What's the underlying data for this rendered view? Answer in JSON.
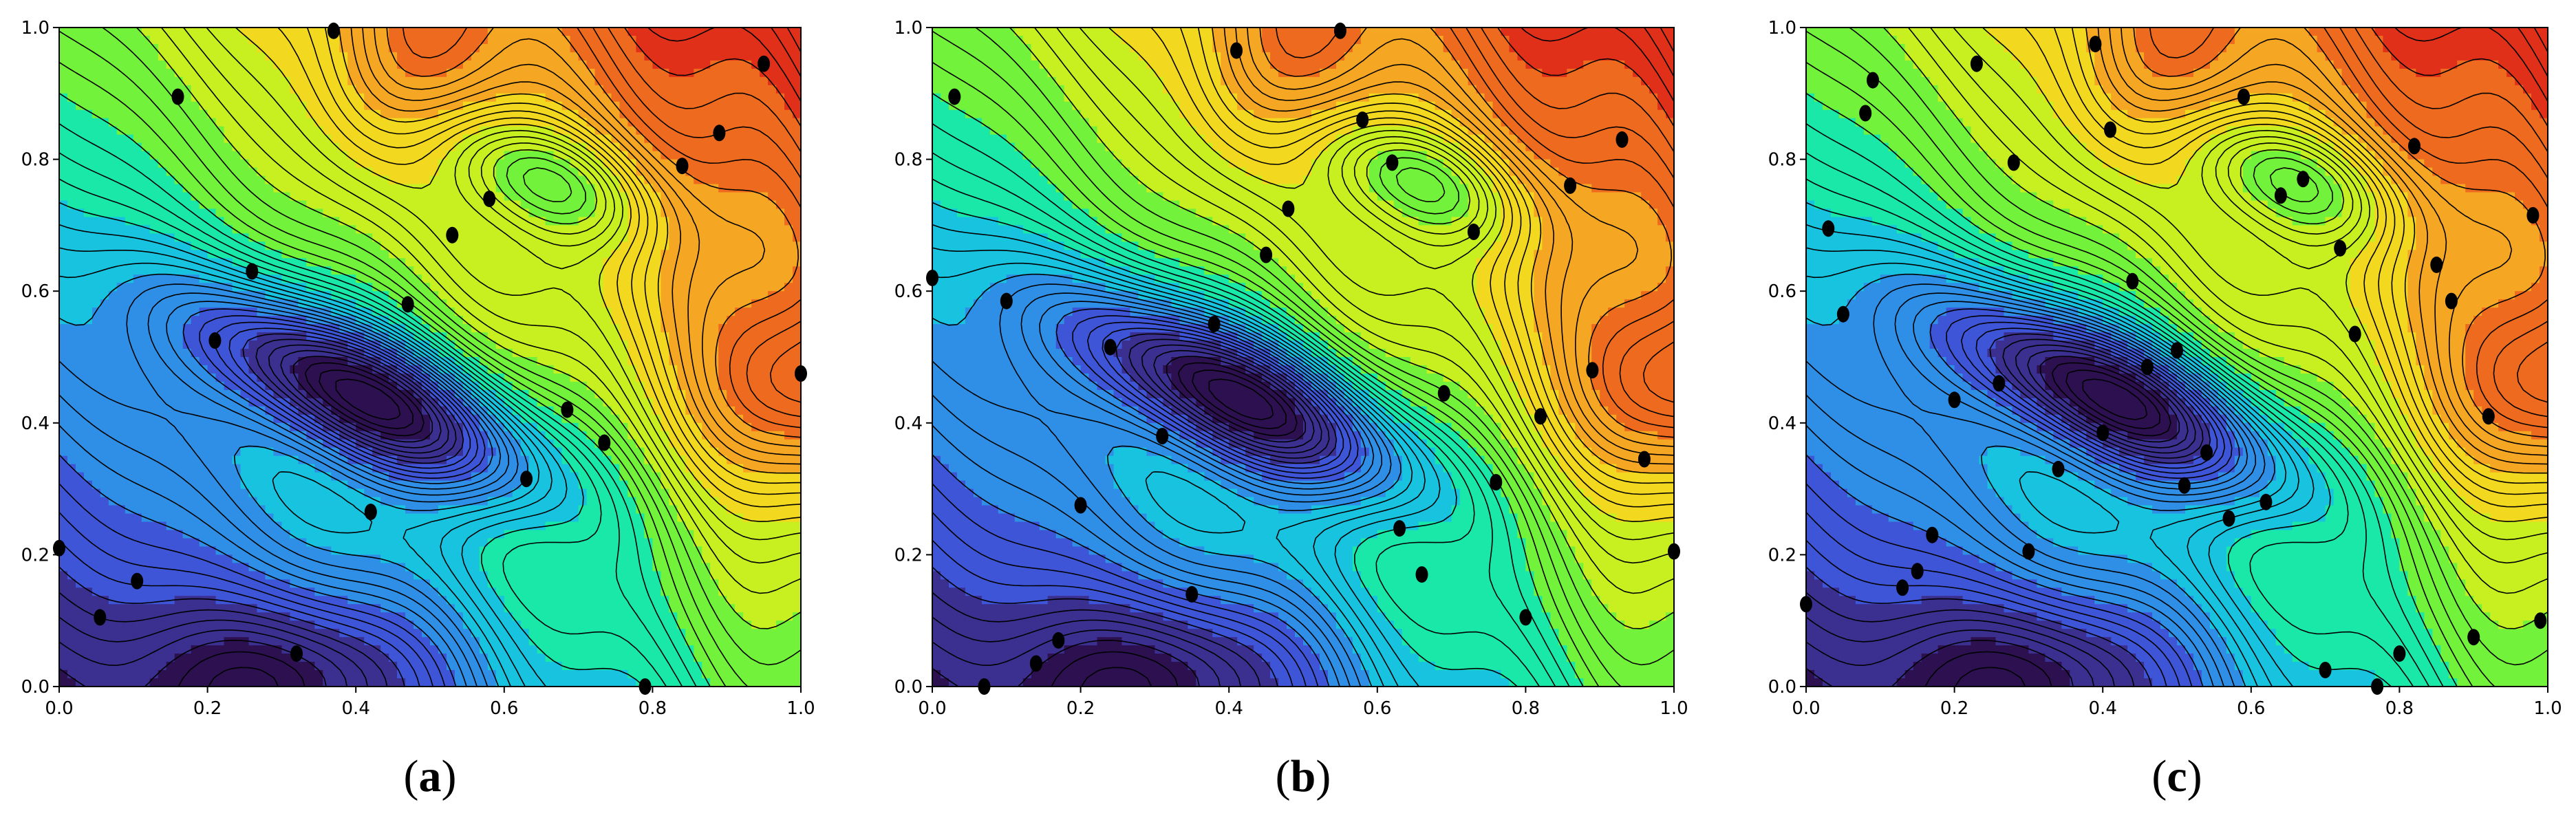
{
  "colors": {
    "colormap": [
      "#2c1050",
      "#3b2f8f",
      "#3d55d6",
      "#2f8fe6",
      "#18c3e0",
      "#19e8a8",
      "#72f23a",
      "#c8f020",
      "#f2d81e",
      "#f5a623",
      "#ee6a1e",
      "#e0301a"
    ],
    "contour_line": "#000000",
    "sample_point": "#000000",
    "background": "#ffffff"
  },
  "chart_data": [
    {
      "type": "contour",
      "panel": "a",
      "caption": {
        "open": "(",
        "letter": "a",
        "close": ")"
      },
      "xlim": [
        0,
        1
      ],
      "ylim": [
        0,
        1
      ],
      "xticks": [
        "0.0",
        "0.2",
        "0.4",
        "0.6",
        "0.8",
        "1.0"
      ],
      "yticks": [
        "0.0",
        "0.2",
        "0.4",
        "0.6",
        "0.8",
        "1.0"
      ],
      "xlabel": "",
      "ylabel": "",
      "title": "",
      "colorscale": "jet",
      "grid": false,
      "contour_levels": 48,
      "points": [
        [
          0.37,
          0.995
        ],
        [
          0.16,
          0.895
        ],
        [
          0.95,
          0.945
        ],
        [
          0.89,
          0.84
        ],
        [
          0.84,
          0.79
        ],
        [
          0.58,
          0.74
        ],
        [
          0.53,
          0.685
        ],
        [
          0.26,
          0.63
        ],
        [
          0.47,
          0.58
        ],
        [
          0.21,
          0.525
        ],
        [
          0.685,
          0.42
        ],
        [
          0.735,
          0.37
        ],
        [
          0.63,
          0.315
        ],
        [
          0.42,
          0.265
        ],
        [
          1.0,
          0.475
        ],
        [
          0.0,
          0.21
        ],
        [
          0.105,
          0.16
        ],
        [
          0.055,
          0.105
        ],
        [
          0.32,
          0.05
        ],
        [
          0.79,
          0.0
        ]
      ]
    },
    {
      "type": "contour",
      "panel": "b",
      "caption": {
        "open": "(",
        "letter": "b",
        "close": ")"
      },
      "xlim": [
        0,
        1
      ],
      "ylim": [
        0,
        1
      ],
      "xticks": [
        "0.0",
        "0.2",
        "0.4",
        "0.6",
        "0.8",
        "1.0"
      ],
      "yticks": [
        "0.0",
        "0.2",
        "0.4",
        "0.6",
        "0.8",
        "1.0"
      ],
      "xlabel": "",
      "ylabel": "",
      "title": "",
      "colorscale": "jet",
      "grid": false,
      "contour_levels": 48,
      "points": [
        [
          0.55,
          0.995
        ],
        [
          0.41,
          0.965
        ],
        [
          0.03,
          0.895
        ],
        [
          0.58,
          0.86
        ],
        [
          0.62,
          0.795
        ],
        [
          0.86,
          0.76
        ],
        [
          0.93,
          0.83
        ],
        [
          0.48,
          0.725
        ],
        [
          0.73,
          0.69
        ],
        [
          0.45,
          0.655
        ],
        [
          0.0,
          0.62
        ],
        [
          0.1,
          0.585
        ],
        [
          0.38,
          0.55
        ],
        [
          0.24,
          0.515
        ],
        [
          0.69,
          0.445
        ],
        [
          0.82,
          0.41
        ],
        [
          0.89,
          0.48
        ],
        [
          0.31,
          0.38
        ],
        [
          0.96,
          0.345
        ],
        [
          0.76,
          0.31
        ],
        [
          0.2,
          0.275
        ],
        [
          0.63,
          0.24
        ],
        [
          1.0,
          0.205
        ],
        [
          0.66,
          0.17
        ],
        [
          0.35,
          0.14
        ],
        [
          0.8,
          0.105
        ],
        [
          0.17,
          0.07
        ],
        [
          0.14,
          0.035
        ],
        [
          0.07,
          0.0
        ]
      ]
    },
    {
      "type": "contour",
      "panel": "c",
      "caption": {
        "open": "(",
        "letter": "c",
        "close": ")"
      },
      "xlim": [
        0,
        1
      ],
      "ylim": [
        0,
        1
      ],
      "xticks": [
        "0.0",
        "0.2",
        "0.4",
        "0.6",
        "0.8",
        "1.0"
      ],
      "yticks": [
        "0.0",
        "0.2",
        "0.4",
        "0.6",
        "0.8",
        "1.0"
      ],
      "xlabel": "",
      "ylabel": "",
      "title": "",
      "colorscale": "jet",
      "grid": false,
      "contour_levels": 48,
      "points": [
        [
          0.39,
          0.975
        ],
        [
          0.09,
          0.92
        ],
        [
          0.08,
          0.87
        ],
        [
          0.23,
          0.945
        ],
        [
          0.41,
          0.845
        ],
        [
          0.28,
          0.795
        ],
        [
          0.59,
          0.895
        ],
        [
          0.67,
          0.77
        ],
        [
          0.64,
          0.745
        ],
        [
          0.82,
          0.82
        ],
        [
          0.72,
          0.665
        ],
        [
          0.98,
          0.715
        ],
        [
          0.85,
          0.64
        ],
        [
          0.87,
          0.585
        ],
        [
          0.03,
          0.695
        ],
        [
          0.05,
          0.565
        ],
        [
          0.44,
          0.615
        ],
        [
          0.74,
          0.535
        ],
        [
          0.5,
          0.51
        ],
        [
          0.46,
          0.485
        ],
        [
          0.26,
          0.46
        ],
        [
          0.2,
          0.435
        ],
        [
          0.92,
          0.41
        ],
        [
          0.4,
          0.385
        ],
        [
          0.54,
          0.355
        ],
        [
          0.34,
          0.33
        ],
        [
          0.51,
          0.305
        ],
        [
          0.62,
          0.28
        ],
        [
          0.57,
          0.255
        ],
        [
          0.17,
          0.23
        ],
        [
          0.3,
          0.205
        ],
        [
          0.15,
          0.175
        ],
        [
          0.13,
          0.15
        ],
        [
          0.0,
          0.125
        ],
        [
          0.99,
          0.1
        ],
        [
          0.9,
          0.075
        ],
        [
          0.8,
          0.05
        ],
        [
          0.7,
          0.025
        ],
        [
          0.77,
          0.0
        ]
      ]
    }
  ]
}
